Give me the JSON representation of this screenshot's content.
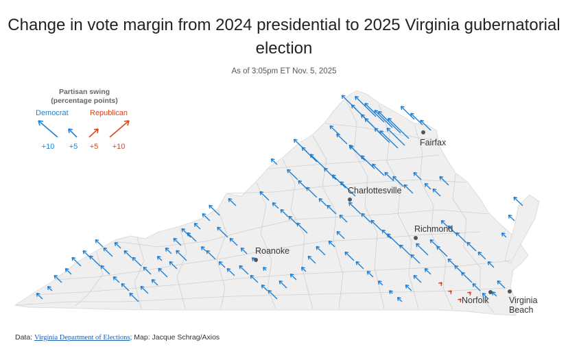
{
  "title": "Change in vote margin from 2024 presidential to 2025 Virginia gubernatorial election",
  "subtitle": "As of 3:05pm ET Nov. 5, 2025",
  "legend": {
    "title": "Partisan swing (percentage points)",
    "democrat_label": "Democrat",
    "republican_label": "Republican",
    "values": [
      "+10",
      "+5",
      "+5",
      "+10"
    ]
  },
  "colors": {
    "democrat": "#1a7fd6",
    "republican": "#d9441c",
    "land": "#efefef",
    "border": "#c9c9c9"
  },
  "cities": [
    {
      "name": "Fairfax"
    },
    {
      "name": "Charlottesville"
    },
    {
      "name": "Richmond"
    },
    {
      "name": "Roanoke"
    },
    {
      "name": "Norfolk"
    },
    {
      "name": "Virginia Beach"
    }
  ],
  "source": {
    "prefix": "Data: ",
    "link_text": "Virginia Department of Elections",
    "suffix": "; Map: Jacque Schrag/Axios"
  },
  "chart_data": {
    "type": "map",
    "encoding": "arrow length = partisan swing in percentage points; up-left = Democrat, up-right = Republican",
    "swings": [
      {
        "party": "D",
        "pp": 14
      },
      {
        "party": "D",
        "pp": 13
      },
      {
        "party": "D",
        "pp": 12
      },
      {
        "party": "D",
        "pp": 15
      },
      {
        "party": "D",
        "pp": 14
      },
      {
        "party": "D",
        "pp": 12
      },
      {
        "party": "D",
        "pp": 9
      },
      {
        "party": "D",
        "pp": 8
      },
      {
        "party": "D",
        "pp": 7
      },
      {
        "party": "D",
        "pp": 10
      },
      {
        "party": "D",
        "pp": 9
      },
      {
        "party": "D",
        "pp": 8
      },
      {
        "party": "D",
        "pp": 11
      },
      {
        "party": "D",
        "pp": 10
      },
      {
        "party": "D",
        "pp": 12
      },
      {
        "party": "D",
        "pp": 6
      },
      {
        "party": "D",
        "pp": 7
      },
      {
        "party": "D",
        "pp": 5
      },
      {
        "party": "D",
        "pp": 10
      },
      {
        "party": "D",
        "pp": 9
      },
      {
        "party": "D",
        "pp": 8
      },
      {
        "party": "D",
        "pp": 6
      },
      {
        "party": "D",
        "pp": 7
      },
      {
        "party": "D",
        "pp": 6
      },
      {
        "party": "D",
        "pp": 5
      },
      {
        "party": "D",
        "pp": 4
      },
      {
        "party": "D",
        "pp": 5
      },
      {
        "party": "D",
        "pp": 6
      },
      {
        "party": "D",
        "pp": 9
      },
      {
        "party": "D",
        "pp": 10
      },
      {
        "party": "D",
        "pp": 11
      },
      {
        "party": "D",
        "pp": 8
      },
      {
        "party": "D",
        "pp": 9
      },
      {
        "party": "D",
        "pp": 10
      },
      {
        "party": "D",
        "pp": 7
      },
      {
        "party": "D",
        "pp": 6
      },
      {
        "party": "D",
        "pp": 7
      },
      {
        "party": "D",
        "pp": 5
      },
      {
        "party": "D",
        "pp": 6
      },
      {
        "party": "D",
        "pp": 5
      },
      {
        "party": "D",
        "pp": 4
      },
      {
        "party": "D",
        "pp": 6
      },
      {
        "party": "D",
        "pp": 4
      },
      {
        "party": "D",
        "pp": 5
      },
      {
        "party": "D",
        "pp": 6
      },
      {
        "party": "D",
        "pp": 7
      },
      {
        "party": "D",
        "pp": 8
      },
      {
        "party": "D",
        "pp": 6
      },
      {
        "party": "D",
        "pp": 7
      },
      {
        "party": "D",
        "pp": 6
      },
      {
        "party": "D",
        "pp": 9
      },
      {
        "party": "D",
        "pp": 7
      },
      {
        "party": "D",
        "pp": 6
      },
      {
        "party": "D",
        "pp": 8
      },
      {
        "party": "D",
        "pp": 5
      },
      {
        "party": "D",
        "pp": 7
      },
      {
        "party": "D",
        "pp": 5
      },
      {
        "party": "D",
        "pp": 6
      },
      {
        "party": "D",
        "pp": 7
      },
      {
        "party": "D",
        "pp": 5
      },
      {
        "party": "D",
        "pp": 4
      },
      {
        "party": "D",
        "pp": 3
      },
      {
        "party": "D",
        "pp": 5
      },
      {
        "party": "D",
        "pp": 4
      },
      {
        "party": "D",
        "pp": 6
      },
      {
        "party": "D",
        "pp": 7
      },
      {
        "party": "D",
        "pp": 6
      },
      {
        "party": "D",
        "pp": 5
      },
      {
        "party": "D",
        "pp": 4
      },
      {
        "party": "D",
        "pp": 3
      },
      {
        "party": "D",
        "pp": 4
      },
      {
        "party": "D",
        "pp": 6
      },
      {
        "party": "D",
        "pp": 5
      },
      {
        "party": "D",
        "pp": 7
      },
      {
        "party": "D",
        "pp": 5
      },
      {
        "party": "D",
        "pp": 4
      },
      {
        "party": "D",
        "pp": 3
      },
      {
        "party": "D",
        "pp": 2
      },
      {
        "party": "D",
        "pp": 3
      },
      {
        "party": "D",
        "pp": 6
      },
      {
        "party": "D",
        "pp": 4
      },
      {
        "party": "D",
        "pp": 5
      },
      {
        "party": "D",
        "pp": 6
      },
      {
        "party": "D",
        "pp": 7
      },
      {
        "party": "D",
        "pp": 5
      },
      {
        "party": "D",
        "pp": 6
      },
      {
        "party": "D",
        "pp": 4
      },
      {
        "party": "D",
        "pp": 5
      },
      {
        "party": "D",
        "pp": 6
      },
      {
        "party": "D",
        "pp": 5
      },
      {
        "party": "D",
        "pp": 4
      },
      {
        "party": "D",
        "pp": 6
      },
      {
        "party": "D",
        "pp": 7
      },
      {
        "party": "D",
        "pp": 5
      },
      {
        "party": "D",
        "pp": 6
      },
      {
        "party": "D",
        "pp": 4
      },
      {
        "party": "D",
        "pp": 5
      },
      {
        "party": "D",
        "pp": 3
      },
      {
        "party": "D",
        "pp": 4
      },
      {
        "party": "D",
        "pp": 5
      },
      {
        "party": "D",
        "pp": 6
      },
      {
        "party": "D",
        "pp": 5
      },
      {
        "party": "D",
        "pp": 4
      },
      {
        "party": "D",
        "pp": 6
      },
      {
        "party": "D",
        "pp": 5
      },
      {
        "party": "D",
        "pp": 3
      },
      {
        "party": "D",
        "pp": 4
      },
      {
        "party": "D",
        "pp": 5
      },
      {
        "party": "D",
        "pp": 6
      },
      {
        "party": "D",
        "pp": 4
      },
      {
        "party": "D",
        "pp": 5
      },
      {
        "party": "D",
        "pp": 7
      },
      {
        "party": "D",
        "pp": 6
      },
      {
        "party": "D",
        "pp": 5
      },
      {
        "party": "D",
        "pp": 4
      },
      {
        "party": "D",
        "pp": 6
      },
      {
        "party": "D",
        "pp": 5
      },
      {
        "party": "D",
        "pp": 4
      },
      {
        "party": "D",
        "pp": 3
      },
      {
        "party": "D",
        "pp": 5
      },
      {
        "party": "D",
        "pp": 6
      },
      {
        "party": "D",
        "pp": 4
      },
      {
        "party": "D",
        "pp": 5
      },
      {
        "party": "D",
        "pp": 6
      },
      {
        "party": "D",
        "pp": 5
      },
      {
        "party": "D",
        "pp": 4
      },
      {
        "party": "D",
        "pp": 3
      },
      {
        "party": "D",
        "pp": 2
      },
      {
        "party": "D",
        "pp": 3
      },
      {
        "party": "D",
        "pp": 4
      },
      {
        "party": "D",
        "pp": 5
      },
      {
        "party": "D",
        "pp": 4
      },
      {
        "party": "R",
        "pp": 1
      },
      {
        "party": "R",
        "pp": 1
      },
      {
        "party": "R",
        "pp": 1
      },
      {
        "party": "R",
        "pp": 1
      }
    ]
  }
}
